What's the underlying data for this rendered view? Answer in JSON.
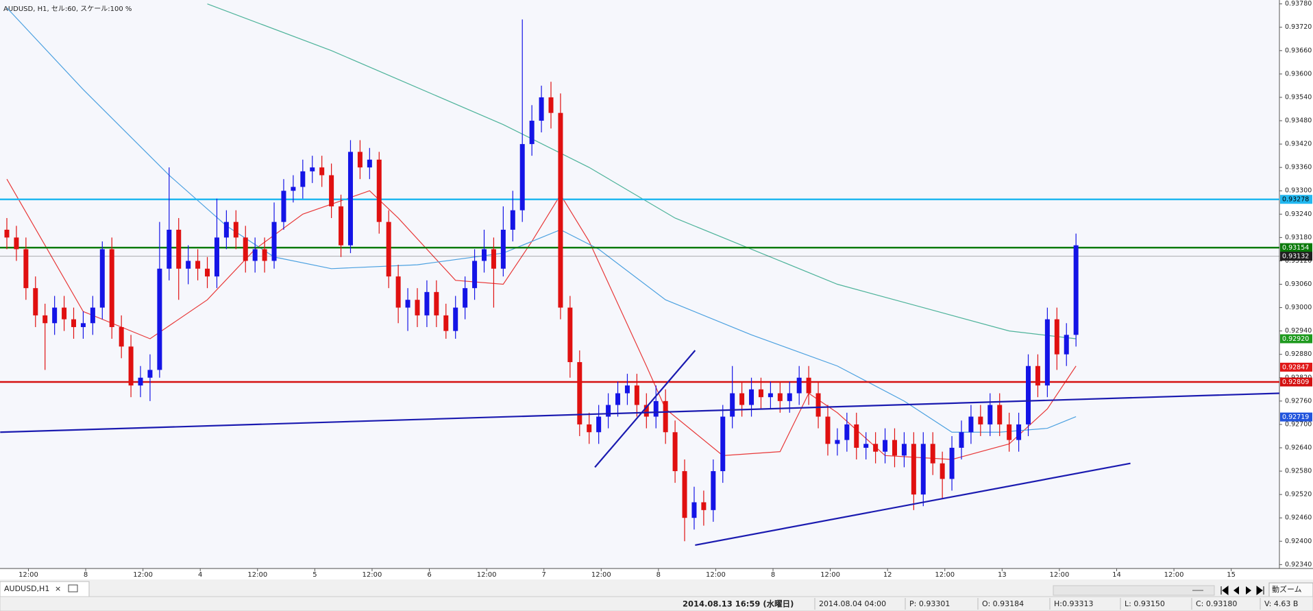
{
  "header": "AUDUSD, H1, セル:60, スケール:100 %",
  "chart_data": {
    "type": "candlestick",
    "up_color": "#1414e6",
    "down_color": "#e01010",
    "ylim": [
      0.9233,
      0.9379
    ],
    "yticks": [
      {
        "value": 0.9378,
        "label": "0.93780"
      },
      {
        "value": 0.9372,
        "label": "0.93720"
      },
      {
        "value": 0.9366,
        "label": "0.93660"
      },
      {
        "value": 0.936,
        "label": "0.93600"
      },
      {
        "value": 0.9354,
        "label": "0.93540"
      },
      {
        "value": 0.9348,
        "label": "0.93480"
      },
      {
        "value": 0.9342,
        "label": "0.93420"
      },
      {
        "value": 0.9336,
        "label": "0.93360"
      },
      {
        "value": 0.933,
        "label": "0.93300"
      },
      {
        "value": 0.9324,
        "label": "0.93240"
      },
      {
        "value": 0.9318,
        "label": "0.93180"
      },
      {
        "value": 0.9312,
        "label": "0.93120"
      },
      {
        "value": 0.9306,
        "label": "0.93060"
      },
      {
        "value": 0.93,
        "label": "0.93000"
      },
      {
        "value": 0.9294,
        "label": "0.92940"
      },
      {
        "value": 0.9288,
        "label": "0.92880"
      },
      {
        "value": 0.9282,
        "label": "0.92820"
      },
      {
        "value": 0.9276,
        "label": "0.92760"
      },
      {
        "value": 0.927,
        "label": "0.92700"
      },
      {
        "value": 0.9264,
        "label": "0.92640"
      },
      {
        "value": 0.9258,
        "label": "0.92580"
      },
      {
        "value": 0.9252,
        "label": "0.92520"
      },
      {
        "value": 0.9246,
        "label": "0.92460"
      },
      {
        "value": 0.924,
        "label": "0.92400"
      },
      {
        "value": 0.9234,
        "label": "0.92340"
      }
    ],
    "grid": false,
    "categories": [
      "12:00",
      "8",
      "12:00",
      "4",
      "12:00",
      "5",
      "12:00",
      "6",
      "12:00",
      "7",
      "12:00",
      "8",
      "12:00",
      "8",
      "12:00",
      "12",
      "12:00",
      "13",
      "12:00",
      "14",
      "12:00",
      "15"
    ],
    "open": [
      0.932,
      0.9318,
      0.9315,
      0.9305,
      0.9298,
      0.9296,
      0.93,
      0.9297,
      0.9295,
      0.9296,
      0.93,
      0.9315,
      0.9295,
      0.929,
      0.928,
      0.9282,
      0.9284,
      0.931,
      0.932,
      0.931,
      0.9312,
      0.931,
      0.9308,
      0.9318,
      0.9322,
      0.9318,
      0.9312,
      0.9315,
      0.9312,
      0.9322,
      0.933,
      0.9331,
      0.9335,
      0.9336,
      0.9334,
      0.9326,
      0.9316,
      0.934,
      0.9336,
      0.9338,
      0.9322,
      0.9308,
      0.93,
      0.9302,
      0.9298,
      0.9304,
      0.9298,
      0.9294,
      0.93,
      0.9305,
      0.9312,
      0.9315,
      0.931,
      0.932,
      0.9325,
      0.9342,
      0.9348,
      0.9354,
      0.935,
      0.93,
      0.9286,
      0.927,
      0.9268,
      0.9272,
      0.9275,
      0.9278,
      0.928,
      0.9275,
      0.9272,
      0.9276,
      0.9268,
      0.9258,
      0.9246,
      0.925,
      0.9248,
      0.9258,
      0.9272,
      0.9278,
      0.9275,
      0.9279,
      0.9277,
      0.9278,
      0.9276,
      0.9278,
      0.9282,
      0.9278,
      0.9272,
      0.9265,
      0.9266,
      0.927,
      0.9264,
      0.9265,
      0.9263,
      0.9266,
      0.9262,
      0.9265,
      0.9252,
      0.9265,
      0.926,
      0.9256,
      0.9264,
      0.9268,
      0.9272,
      0.927,
      0.9275,
      0.927,
      0.9266,
      0.927,
      0.9285,
      0.928,
      0.9297,
      0.9288,
      0.9293
    ],
    "high": [
      0.9323,
      0.9321,
      0.9318,
      0.9308,
      0.9301,
      0.9303,
      0.9303,
      0.93,
      0.9299,
      0.9303,
      0.9317,
      0.9318,
      0.9298,
      0.9293,
      0.9285,
      0.9288,
      0.9322,
      0.9336,
      0.9323,
      0.9316,
      0.9315,
      0.9313,
      0.9328,
      0.9325,
      0.9325,
      0.9321,
      0.9318,
      0.9318,
      0.9327,
      0.9333,
      0.9334,
      0.9338,
      0.9339,
      0.9339,
      0.9337,
      0.9329,
      0.9343,
      0.9343,
      0.9341,
      0.934,
      0.9325,
      0.9311,
      0.9305,
      0.9305,
      0.9307,
      0.9307,
      0.9301,
      0.9303,
      0.9308,
      0.9315,
      0.932,
      0.9318,
      0.9326,
      0.933,
      0.9374,
      0.9352,
      0.9357,
      0.9358,
      0.9355,
      0.9303,
      0.9289,
      0.9273,
      0.9275,
      0.9278,
      0.9281,
      0.9283,
      0.9283,
      0.9278,
      0.928,
      0.9279,
      0.9271,
      0.9261,
      0.9254,
      0.9253,
      0.9261,
      0.9275,
      0.9285,
      0.9281,
      0.9282,
      0.9282,
      0.9281,
      0.9281,
      0.9281,
      0.9285,
      0.9285,
      0.9281,
      0.9275,
      0.9269,
      0.9273,
      0.9273,
      0.9268,
      0.9268,
      0.9269,
      0.9269,
      0.9268,
      0.9268,
      0.9268,
      0.9268,
      0.9263,
      0.9267,
      0.9271,
      0.9275,
      0.9275,
      0.9278,
      0.9278,
      0.9273,
      0.9273,
      0.9288,
      0.9288,
      0.93,
      0.93,
      0.9296,
      0.9319
    ],
    "low": [
      0.9315,
      0.9312,
      0.9302,
      0.9295,
      0.9284,
      0.9293,
      0.9294,
      0.9292,
      0.9292,
      0.9293,
      0.9297,
      0.9292,
      0.9287,
      0.9277,
      0.9277,
      0.9276,
      0.9282,
      0.9307,
      0.9302,
      0.9306,
      0.9307,
      0.9305,
      0.9305,
      0.9315,
      0.9315,
      0.9309,
      0.9309,
      0.9309,
      0.931,
      0.932,
      0.9327,
      0.9328,
      0.9332,
      0.9331,
      0.9323,
      0.9313,
      0.9314,
      0.9333,
      0.9333,
      0.9319,
      0.9305,
      0.9296,
      0.9294,
      0.9295,
      0.9295,
      0.9295,
      0.9292,
      0.9292,
      0.9297,
      0.9302,
      0.9309,
      0.93,
      0.9308,
      0.9317,
      0.9322,
      0.9339,
      0.9345,
      0.9346,
      0.9297,
      0.9282,
      0.9267,
      0.9265,
      0.9265,
      0.9269,
      0.9272,
      0.9275,
      0.9272,
      0.9269,
      0.9269,
      0.9265,
      0.9255,
      0.924,
      0.9243,
      0.9244,
      0.9245,
      0.9255,
      0.9269,
      0.9272,
      0.9272,
      0.9274,
      0.9274,
      0.9273,
      0.9273,
      0.9275,
      0.9275,
      0.9269,
      0.9262,
      0.9262,
      0.9263,
      0.9261,
      0.9261,
      0.926,
      0.926,
      0.9259,
      0.9259,
      0.9248,
      0.9249,
      0.9257,
      0.9251,
      0.9253,
      0.9261,
      0.9265,
      0.9267,
      0.9267,
      0.9267,
      0.9263,
      0.9263,
      0.9267,
      0.9277,
      0.9277,
      0.9284,
      0.9285,
      0.929
    ],
    "close": [
      0.9318,
      0.9315,
      0.9305,
      0.9298,
      0.9296,
      0.93,
      0.9297,
      0.9295,
      0.9296,
      0.93,
      0.9315,
      0.9295,
      0.929,
      0.928,
      0.9282,
      0.9284,
      0.931,
      0.932,
      0.931,
      0.9312,
      0.931,
      0.9308,
      0.9318,
      0.9322,
      0.9318,
      0.9312,
      0.9315,
      0.9312,
      0.9322,
      0.933,
      0.9331,
      0.9335,
      0.9336,
      0.9334,
      0.9326,
      0.9316,
      0.934,
      0.9336,
      0.9338,
      0.9322,
      0.9308,
      0.93,
      0.9302,
      0.9298,
      0.9304,
      0.9298,
      0.9294,
      0.93,
      0.9305,
      0.9312,
      0.9315,
      0.931,
      0.932,
      0.9325,
      0.9342,
      0.9348,
      0.9354,
      0.935,
      0.93,
      0.9286,
      0.927,
      0.9268,
      0.9272,
      0.9275,
      0.9278,
      0.928,
      0.9275,
      0.9272,
      0.9276,
      0.9268,
      0.9258,
      0.9246,
      0.925,
      0.9248,
      0.9258,
      0.9272,
      0.9278,
      0.9275,
      0.9279,
      0.9277,
      0.9278,
      0.9276,
      0.9278,
      0.9282,
      0.9278,
      0.9272,
      0.9265,
      0.9266,
      0.927,
      0.9264,
      0.9265,
      0.9263,
      0.9266,
      0.9262,
      0.9265,
      0.9252,
      0.9265,
      0.926,
      0.9256,
      0.9264,
      0.9268,
      0.9272,
      0.927,
      0.9275,
      0.927,
      0.9266,
      0.927,
      0.9285,
      0.928,
      0.9297,
      0.9288,
      0.9293,
      0.9316
    ],
    "indicators": [
      {
        "color": "#e83838",
        "x": [
          0,
          8,
          15,
          21,
          26,
          31,
          38,
          41,
          47,
          52,
          55,
          58,
          61,
          67,
          69,
          75,
          81,
          84,
          87,
          92,
          99,
          105,
          109,
          112
        ],
        "values": [
          0.9333,
          0.9299,
          0.9292,
          0.9302,
          0.9315,
          0.9324,
          0.933,
          0.9323,
          0.9307,
          0.9306,
          0.9317,
          0.9329,
          0.9317,
          0.9285,
          0.9274,
          0.9262,
          0.9263,
          0.9278,
          0.9273,
          0.9262,
          0.9261,
          0.9265,
          0.9274,
          0.9285
        ]
      },
      {
        "color": "#4aa0e0",
        "x": [
          0,
          8,
          17,
          23,
          28,
          34,
          43,
          52,
          58,
          62,
          69,
          78,
          87,
          94,
          99,
          104,
          109,
          112
        ],
        "values": [
          0.9377,
          0.9356,
          0.9334,
          0.9321,
          0.9313,
          0.931,
          0.9311,
          0.9314,
          0.932,
          0.9315,
          0.9302,
          0.9293,
          0.9285,
          0.9276,
          0.9268,
          0.9268,
          0.9269,
          0.9272
        ]
      },
      {
        "color": "#4db39a",
        "x": [
          21,
          34,
          52,
          61,
          70,
          78,
          87,
          96,
          105,
          112
        ],
        "values": [
          0.9378,
          0.9366,
          0.9347,
          0.9336,
          0.9323,
          0.9315,
          0.9306,
          0.93,
          0.9294,
          0.9292
        ]
      }
    ],
    "trendlines": [
      {
        "color": "#1a1ab0",
        "x": [
          -0.7,
          133.3
        ],
        "values": [
          0.9268,
          0.9278
        ]
      },
      {
        "color": "#1a1ab0",
        "x": [
          61.6,
          72.1
        ],
        "values": [
          0.9259,
          0.9289
        ]
      },
      {
        "color": "#1a1ab0",
        "x": [
          72.1,
          117.7
        ],
        "values": [
          0.9239,
          0.926
        ]
      }
    ],
    "price_labels": [
      {
        "value": 0.93278,
        "color": "#22b8f0",
        "text_color": "#000000",
        "line": true
      },
      {
        "value": 0.93154,
        "color": "#0a7a0a",
        "text_color": "#ffffff",
        "line": true
      },
      {
        "value": 0.93132,
        "color": "#202020",
        "text_color": "#ffffff",
        "line": true
      },
      {
        "value": 0.9292,
        "label": "0.92920",
        "color": "#1e9a1e",
        "text_color": "#ffffff",
        "line": false
      },
      {
        "value": 0.92847,
        "color": "#e01818",
        "text_color": "#ffffff",
        "line": false
      },
      {
        "value": 0.92809,
        "color": "#d41010",
        "text_color": "#ffffff",
        "line": true
      },
      {
        "value": 0.92719,
        "color": "#2255dd",
        "text_color": "#ffffff",
        "line": false
      }
    ]
  },
  "tab": {
    "label": "AUDUSD,H1",
    "close": "×"
  },
  "zoom_button": "動ズーム",
  "status_bar": [
    "2014.08.13 16:59 (水曜日)",
    "2014.08.04 04:00",
    "P: 0.93301",
    "O: 0.93184",
    "H:0.93313",
    "L: 0.93150",
    "C: 0.93180",
    "V: 4.63 B"
  ]
}
